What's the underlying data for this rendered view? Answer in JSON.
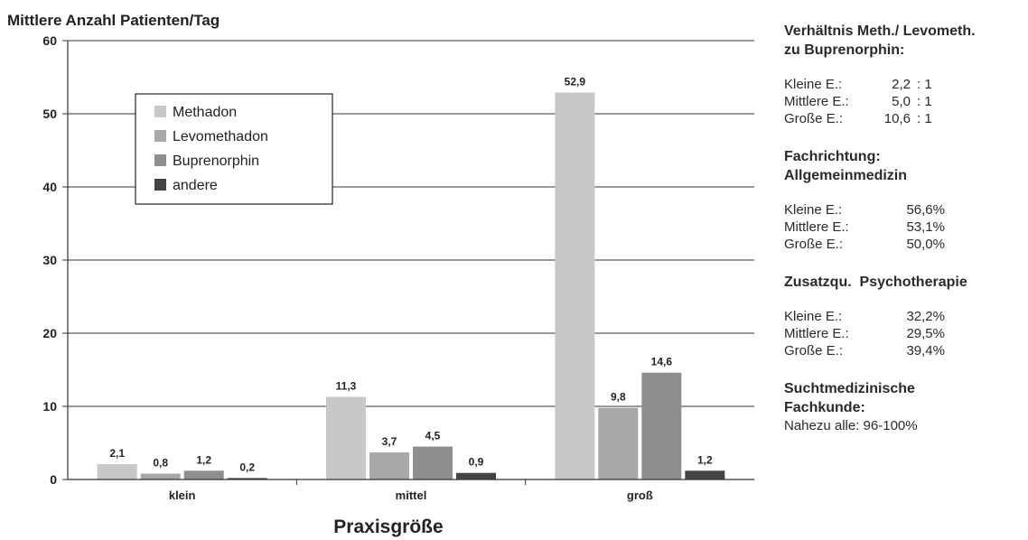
{
  "chart_data": {
    "type": "bar",
    "title": "Mittlere Anzahl Patienten/Tag",
    "xlabel": "Praxisgröße",
    "ylabel": "",
    "categories": [
      "klein",
      "mittel",
      "groß"
    ],
    "ylim": [
      0,
      60
    ],
    "yticks": [
      "0",
      "10",
      "20",
      "30",
      "40",
      "50",
      "60"
    ],
    "grid": true,
    "legend_position": "top-left",
    "series": [
      {
        "name": "Methadon",
        "color": "#c8c8c8",
        "values": [
          2.1,
          11.3,
          52.9
        ],
        "labels": [
          "2,1",
          "11,3",
          "52,9"
        ]
      },
      {
        "name": "Levomethadon",
        "color": "#a8a8a8",
        "values": [
          0.8,
          3.7,
          9.8
        ],
        "labels": [
          "0,8",
          "3,7",
          "9,8"
        ]
      },
      {
        "name": "Buprenorphin",
        "color": "#8e8e8e",
        "values": [
          1.2,
          4.5,
          14.6
        ],
        "labels": [
          "1,2",
          "4,5",
          "14,6"
        ]
      },
      {
        "name": "andere",
        "color": "#444444",
        "values": [
          0.2,
          0.9,
          1.2
        ],
        "labels": [
          "0,2",
          "0,9",
          "1,2"
        ]
      }
    ]
  },
  "panel": {
    "ratio": {
      "heading_line1": "Verhältnis Meth./ Levometh.",
      "heading_line2": "zu Buprenorphin:",
      "rows": [
        {
          "label": "Kleine E.:",
          "value": "2,2",
          "suffix": ": 1"
        },
        {
          "label": "Mittlere E.:",
          "value": "5,0",
          "suffix": ": 1"
        },
        {
          "label": "Große E.:",
          "value": "10,6",
          "suffix": ": 1"
        }
      ]
    },
    "fach": {
      "heading_line1": "Fachrichtung:",
      "heading_line2": "Allgemeinmedizin",
      "rows": [
        {
          "label": "Kleine E.:",
          "value": "56,6%"
        },
        {
          "label": "Mittlere E.:",
          "value": "53,1%"
        },
        {
          "label": "Große E.:",
          "value": "50,0%"
        }
      ]
    },
    "zusatz": {
      "heading_line1": "Zusatzqu.  Psychotherapie",
      "rows": [
        {
          "label": "Kleine E.:",
          "value": "32,2%"
        },
        {
          "label": "Mittlere E.:",
          "value": "29,5%"
        },
        {
          "label": "Große E.:",
          "value": "39,4%"
        }
      ]
    },
    "sucht": {
      "heading_line1": "Suchtmedizinische",
      "heading_line2": "Fachkunde:",
      "note": "Nahezu alle: 96-100%"
    }
  }
}
